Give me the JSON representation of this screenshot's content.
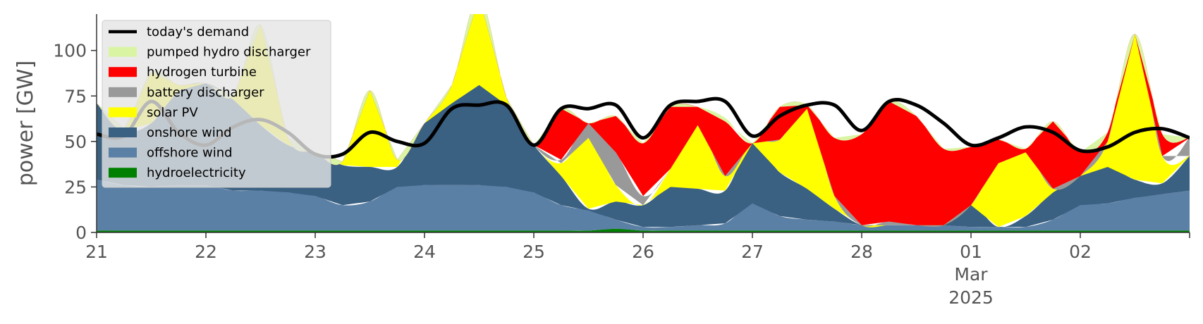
{
  "chart_data": {
    "type": "area",
    "ylabel": "power [GW]",
    "ylim": [
      0,
      120
    ],
    "xlim": [
      "2025-02-21",
      "2025-03-03"
    ],
    "grid": false,
    "legend_position": "top-left",
    "y_ticks": [
      0,
      25,
      50,
      75,
      100
    ],
    "x_ticks": [
      {
        "date": "2025-02-21",
        "label": "21"
      },
      {
        "date": "2025-02-22",
        "label": "22"
      },
      {
        "date": "2025-02-23",
        "label": "23"
      },
      {
        "date": "2025-02-24",
        "label": "24"
      },
      {
        "date": "2025-02-25",
        "label": "25"
      },
      {
        "date": "2025-02-26",
        "label": "26"
      },
      {
        "date": "2025-02-27",
        "label": "27"
      },
      {
        "date": "2025-02-28",
        "label": "28"
      },
      {
        "date": "2025-03-01",
        "label": "01"
      },
      {
        "date": "2025-03-02",
        "label": "02"
      },
      {
        "date": "2025-03-03",
        "label": ""
      }
    ],
    "x_sublabel": {
      "date": "2025-03-01",
      "month": "Mar",
      "year": "2025"
    },
    "x": [
      "2025-02-21 00:00",
      "2025-02-21 06:00",
      "2025-02-21 12:00",
      "2025-02-21 18:00",
      "2025-02-22 00:00",
      "2025-02-22 06:00",
      "2025-02-22 12:00",
      "2025-02-22 18:00",
      "2025-02-23 00:00",
      "2025-02-23 06:00",
      "2025-02-23 12:00",
      "2025-02-23 18:00",
      "2025-02-24 00:00",
      "2025-02-24 06:00",
      "2025-02-24 12:00",
      "2025-02-24 18:00",
      "2025-02-25 00:00",
      "2025-02-25 06:00",
      "2025-02-25 12:00",
      "2025-02-25 18:00",
      "2025-02-26 00:00",
      "2025-02-26 06:00",
      "2025-02-26 12:00",
      "2025-02-26 18:00",
      "2025-02-27 00:00",
      "2025-02-27 06:00",
      "2025-02-27 12:00",
      "2025-02-27 18:00",
      "2025-02-28 00:00",
      "2025-02-28 06:00",
      "2025-02-28 12:00",
      "2025-02-28 18:00",
      "2025-03-01 00:00",
      "2025-03-01 06:00",
      "2025-03-01 12:00",
      "2025-03-01 18:00",
      "2025-03-02 00:00",
      "2025-03-02 06:00",
      "2025-03-02 12:00",
      "2025-03-02 18:00",
      "2025-03-03 00:00"
    ],
    "series": [
      {
        "name": "hydroelectricity",
        "color": "#008000",
        "values": [
          1,
          1,
          1,
          1,
          1,
          1,
          1,
          1,
          1,
          1,
          1,
          1,
          1,
          1,
          1,
          1,
          1,
          1,
          1,
          2,
          1,
          1,
          1,
          1,
          1,
          1,
          1,
          1,
          1,
          1,
          1,
          1,
          1,
          1,
          1,
          1,
          1,
          1,
          1,
          1,
          1
        ]
      },
      {
        "name": "offshore wind",
        "color": "#5b80a5",
        "values": [
          28,
          25,
          24,
          25,
          25,
          22,
          22,
          21,
          19,
          14,
          16,
          24,
          25,
          25,
          25,
          24,
          21,
          14,
          11,
          5,
          2,
          2,
          3,
          4,
          15,
          8,
          6,
          5,
          3,
          3,
          3,
          3,
          2,
          2,
          2,
          6,
          14,
          15,
          18,
          20,
          22
        ]
      },
      {
        "name": "onshore wind",
        "color": "#3a6082",
        "values": [
          42,
          30,
          35,
          52,
          56,
          50,
          36,
          26,
          24,
          22,
          19,
          11,
          34,
          45,
          55,
          45,
          26,
          16,
          1,
          10,
          12,
          22,
          20,
          18,
          33,
          24,
          17,
          7,
          0,
          0,
          0,
          0,
          12,
          0,
          6,
          15,
          16,
          20,
          10,
          6,
          19
        ]
      },
      {
        "name": "solar PV",
        "color": "#ffff00",
        "values": [
          0,
          1,
          28,
          3,
          0,
          2,
          55,
          4,
          0,
          2,
          42,
          4,
          0,
          10,
          48,
          4,
          0,
          7,
          39,
          9,
          0,
          10,
          35,
          8,
          0,
          18,
          44,
          7,
          0,
          0,
          0,
          0,
          0,
          35,
          35,
          2,
          0,
          14,
          80,
          15,
          0
        ]
      },
      {
        "name": "battery discharger",
        "color": "#999999",
        "values": [
          0,
          0,
          0,
          0,
          0,
          0,
          0,
          0,
          0,
          0,
          0,
          0,
          0,
          0,
          0,
          0,
          0,
          2,
          8,
          18,
          5,
          0,
          0,
          0,
          0,
          0,
          0,
          0,
          0,
          2,
          0,
          0,
          0,
          0,
          0,
          0,
          0,
          0,
          0,
          0,
          10
        ]
      },
      {
        "name": "hydrogen turbine",
        "color": "#ff0000",
        "values": [
          0,
          0,
          0,
          0,
          0,
          0,
          0,
          0,
          0,
          0,
          0,
          0,
          0,
          0,
          0,
          0,
          0,
          28,
          0,
          20,
          29,
          34,
          10,
          30,
          0,
          18,
          2,
          32,
          50,
          66,
          60,
          42,
          32,
          13,
          2,
          37,
          13,
          5,
          0,
          12,
          0
        ]
      },
      {
        "name": "pumped hydro discharger",
        "color": "#d9f5a3",
        "values": [
          0,
          0,
          0,
          0,
          0,
          0,
          0,
          0,
          0,
          0,
          0,
          0,
          0,
          0,
          0,
          0,
          0,
          0,
          0,
          0,
          0,
          0,
          0,
          2,
          0,
          0,
          0,
          0,
          0,
          0,
          0,
          0,
          0,
          0,
          0,
          0,
          0,
          0,
          0,
          0,
          0
        ]
      }
    ],
    "demand": {
      "name": "today's demand",
      "color": "#000000",
      "values": [
        54,
        53,
        72,
        55,
        48,
        58,
        62,
        55,
        43,
        43,
        55,
        50,
        49,
        68,
        70,
        70,
        48,
        68,
        68,
        70,
        52,
        70,
        72,
        72,
        53,
        64,
        70,
        70,
        56,
        72,
        70,
        60,
        48,
        52,
        58,
        55,
        45,
        47,
        55,
        57,
        52
      ]
    },
    "legend": [
      {
        "label": "today's demand",
        "kind": "line",
        "color": "#000000"
      },
      {
        "label": "pumped hydro discharger",
        "kind": "patch",
        "color": "#d9f5a3"
      },
      {
        "label": "hydrogen turbine",
        "kind": "patch",
        "color": "#ff0000"
      },
      {
        "label": "battery discharger",
        "kind": "patch",
        "color": "#999999"
      },
      {
        "label": "solar PV",
        "kind": "patch",
        "color": "#ffff00"
      },
      {
        "label": "onshore wind",
        "kind": "patch",
        "color": "#3a6082"
      },
      {
        "label": "offshore wind",
        "kind": "patch",
        "color": "#5b80a5"
      },
      {
        "label": "hydroelectricity",
        "kind": "patch",
        "color": "#008000"
      }
    ]
  }
}
